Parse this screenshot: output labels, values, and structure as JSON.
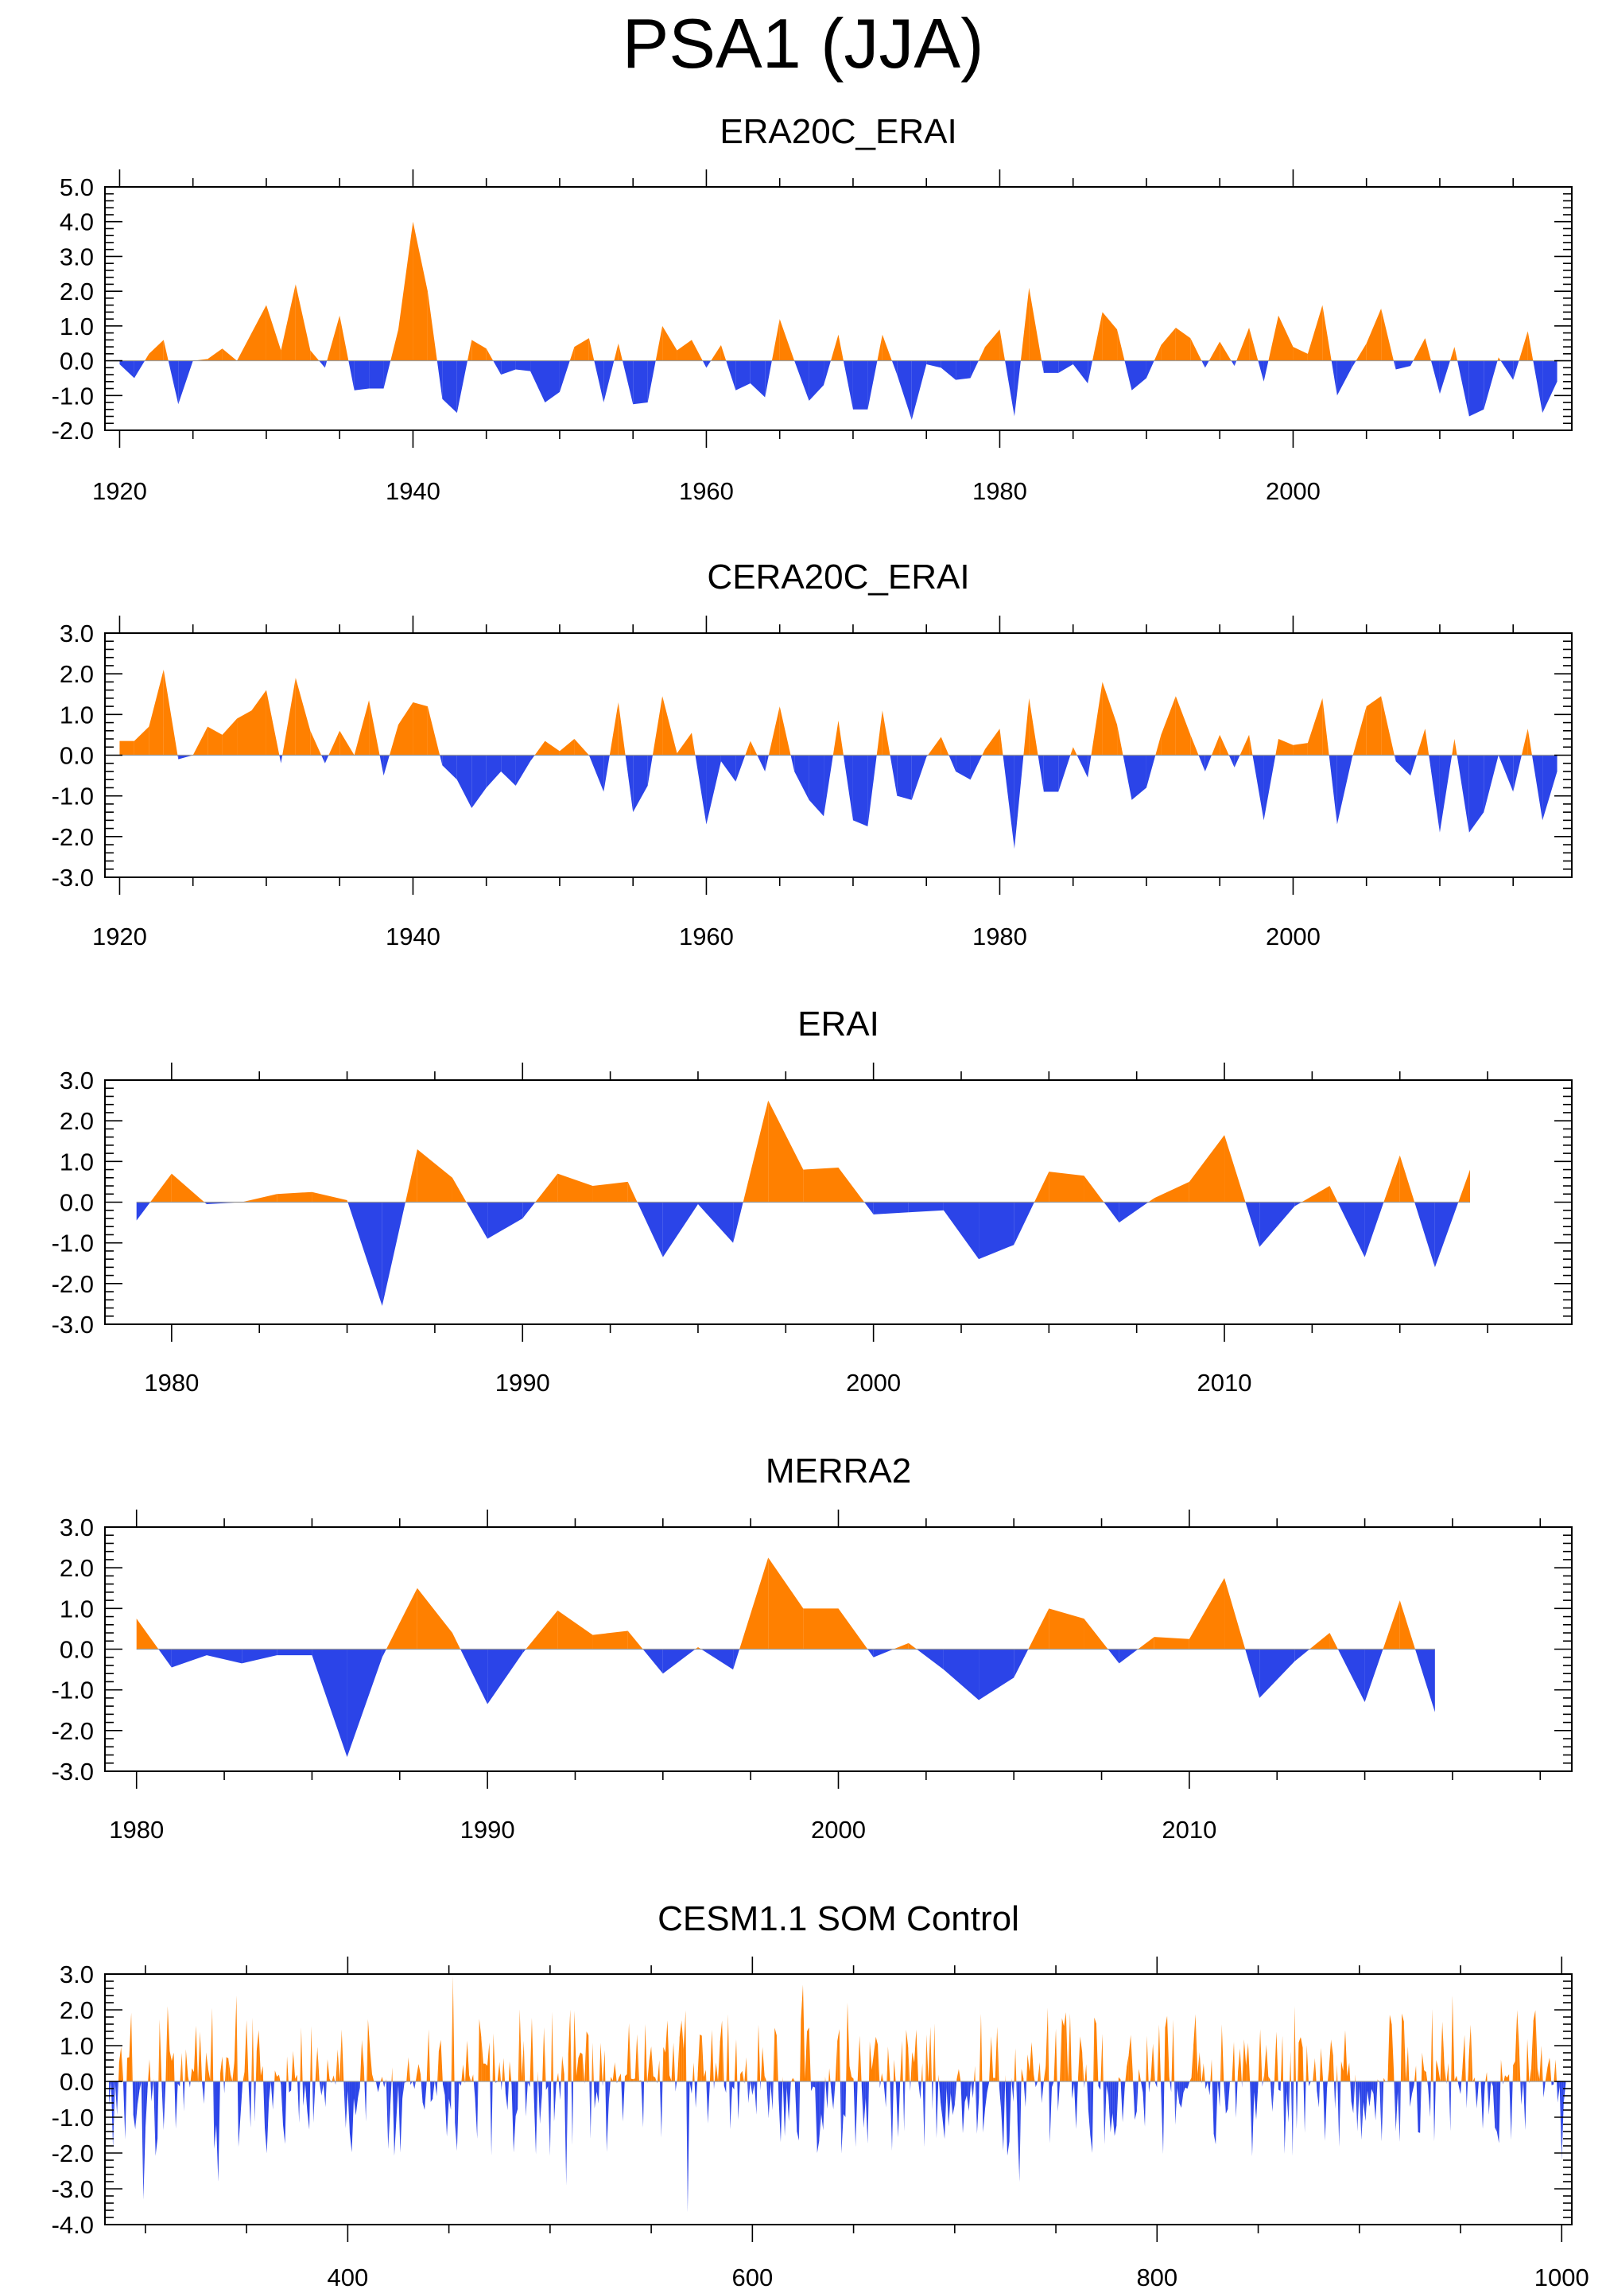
{
  "figure": {
    "title": "PSA1 (JJA)",
    "colors": {
      "positive": "#ff8000",
      "negative": "#2b44e8",
      "axis": "#000000"
    }
  },
  "chart_data": [
    {
      "type": "area",
      "title": "ERA20C_ERAI",
      "xlim": [
        1919,
        2019
      ],
      "ylim": [
        -2.0,
        5.0
      ],
      "xticks": [
        1920,
        1940,
        1960,
        1980,
        2000
      ],
      "xtick_labels": [
        "1920",
        "1940",
        "1960",
        "1980",
        "2000"
      ],
      "yticks": [
        -2,
        -1,
        0,
        1,
        2,
        3,
        4,
        5
      ],
      "ytick_labels": [
        "-2.0",
        "-1.0",
        "0.0",
        "1.0",
        "2.0",
        "3.0",
        "4.0",
        "5.0"
      ],
      "x_start": 1920,
      "values": [
        -0.1,
        -0.5,
        0.2,
        0.6,
        -1.25,
        0.0,
        0.05,
        0.35,
        0.0,
        0.8,
        1.6,
        0.3,
        2.2,
        0.3,
        -0.2,
        1.3,
        -0.85,
        -0.8,
        -0.8,
        0.9,
        4.0,
        2.0,
        -1.1,
        -1.5,
        0.6,
        0.35,
        -0.4,
        -0.25,
        -0.3,
        -1.2,
        -0.9,
        0.4,
        0.65,
        -1.2,
        0.5,
        -1.25,
        -1.2,
        1.0,
        0.3,
        0.6,
        -0.2,
        0.45,
        -0.85,
        -0.65,
        -1.05,
        1.2,
        0.0,
        -1.15,
        -0.7,
        0.75,
        -1.4,
        -1.4,
        0.75,
        -0.4,
        -1.7,
        -0.1,
        -0.2,
        -0.55,
        -0.5,
        0.4,
        0.9,
        -1.6,
        2.1,
        -0.35,
        -0.35,
        -0.1,
        -0.65,
        1.4,
        0.9,
        -0.85,
        -0.5,
        0.45,
        0.95,
        0.65,
        -0.2,
        0.55,
        -0.15,
        0.95,
        -0.6,
        1.3,
        0.4,
        0.2,
        1.6,
        -1.0,
        -0.2,
        0.5,
        1.5,
        -0.25,
        -0.15,
        0.65,
        -0.95,
        0.4,
        -1.6,
        -1.4,
        0.1,
        -0.55,
        0.85,
        -1.5,
        -0.6
      ]
    },
    {
      "type": "area",
      "title": "CERA20C_ERAI",
      "xlim": [
        1919,
        2019
      ],
      "ylim": [
        -3.0,
        3.0
      ],
      "xticks": [
        1920,
        1940,
        1960,
        1980,
        2000
      ],
      "xtick_labels": [
        "1920",
        "1940",
        "1960",
        "1980",
        "2000"
      ],
      "yticks": [
        -3,
        -2,
        -1,
        0,
        1,
        2,
        3
      ],
      "ytick_labels": [
        "-3.0",
        "-2.0",
        "-1.0",
        "0.0",
        "1.0",
        "2.0",
        "3.0"
      ],
      "x_start": 1920,
      "values": [
        0.35,
        0.35,
        0.7,
        2.1,
        -0.1,
        0.0,
        0.7,
        0.5,
        0.9,
        1.1,
        1.6,
        -0.2,
        1.9,
        0.6,
        -0.2,
        0.6,
        0.0,
        1.35,
        -0.5,
        0.75,
        1.3,
        1.2,
        -0.25,
        -0.6,
        -1.3,
        -0.8,
        -0.4,
        -0.75,
        -0.15,
        0.35,
        0.1,
        0.4,
        0.0,
        -0.9,
        1.3,
        -1.4,
        -0.75,
        1.45,
        0.05,
        0.55,
        -1.7,
        -0.15,
        -0.65,
        0.35,
        -0.4,
        1.2,
        -0.4,
        -1.1,
        -1.5,
        0.85,
        -1.6,
        -1.75,
        1.1,
        -1.0,
        -1.1,
        -0.05,
        0.45,
        -0.4,
        -0.6,
        0.15,
        0.65,
        -2.3,
        1.4,
        -0.9,
        -0.9,
        0.2,
        -0.55,
        1.8,
        0.75,
        -1.1,
        -0.8,
        0.5,
        1.45,
        0.5,
        -0.4,
        0.5,
        -0.3,
        0.5,
        -1.6,
        0.4,
        0.25,
        0.3,
        1.4,
        -1.7,
        -0.1,
        1.2,
        1.45,
        -0.15,
        -0.5,
        0.65,
        -1.9,
        0.4,
        -1.9,
        -1.4,
        0.0,
        -0.9,
        0.65,
        -1.6,
        -0.4
      ]
    },
    {
      "type": "area",
      "title": "ERAI",
      "xlim": [
        1978.1,
        2019.9
      ],
      "ylim": [
        -3.0,
        3.0
      ],
      "xticks": [
        1980,
        1990,
        2000,
        2010
      ],
      "xtick_labels": [
        "1980",
        "1990",
        "2000",
        "2010"
      ],
      "yticks": [
        -3,
        -2,
        -1,
        0,
        1,
        2,
        3
      ],
      "ytick_labels": [
        "-3.0",
        "-2.0",
        "-1.0",
        "0.0",
        "1.0",
        "2.0",
        "3.0"
      ],
      "x_start": 1979,
      "values": [
        -0.45,
        0.7,
        -0.05,
        0.0,
        0.2,
        0.25,
        0.05,
        -2.55,
        1.3,
        0.6,
        -0.9,
        -0.4,
        0.7,
        0.4,
        0.5,
        -1.35,
        -0.05,
        -1.0,
        2.5,
        0.8,
        0.85,
        -0.3,
        -0.25,
        -0.2,
        -1.4,
        -1.05,
        0.75,
        0.65,
        -0.5,
        0.1,
        0.5,
        1.65,
        -1.1,
        -0.1,
        0.4,
        -1.35,
        1.15,
        -1.6,
        0.8
      ]
    },
    {
      "type": "area",
      "title": "MERRA2",
      "xlim": [
        1979.1,
        2020.9
      ],
      "ylim": [
        -3.0,
        3.0
      ],
      "xticks": [
        1980,
        1990,
        2000,
        2010
      ],
      "xtick_labels": [
        "1980",
        "1990",
        "2000",
        "2010"
      ],
      "yticks": [
        -3,
        -2,
        -1,
        0,
        1,
        2,
        3
      ],
      "ytick_labels": [
        "-3.0",
        "-2.0",
        "-1.0",
        "0.0",
        "1.0",
        "2.0",
        "3.0"
      ],
      "x_start": 1980,
      "values": [
        0.75,
        -0.45,
        -0.15,
        -0.35,
        -0.15,
        -0.15,
        -2.65,
        -0.2,
        1.5,
        0.4,
        -1.35,
        -0.1,
        0.95,
        0.35,
        0.45,
        -0.6,
        0.05,
        -0.5,
        2.25,
        1.0,
        1.0,
        -0.2,
        0.15,
        -0.5,
        -1.25,
        -0.7,
        1.0,
        0.75,
        -0.35,
        0.3,
        0.25,
        1.75,
        -1.2,
        -0.3,
        0.4,
        -1.3,
        1.2,
        -1.55
      ]
    },
    {
      "type": "area",
      "title": "CESM1.1 SOM Control",
      "xlim": [
        280,
        1005
      ],
      "ylim": [
        -4.0,
        3.0
      ],
      "xticks": [
        400,
        600,
        800,
        1000
      ],
      "xtick_labels": [
        "400",
        "600",
        "800",
        "1000"
      ],
      "yticks": [
        -4,
        -3,
        -2,
        -1,
        0,
        1,
        2,
        3
      ],
      "ytick_labels": [
        "-4.0",
        "-3.0",
        "-2.0",
        "-1.0",
        "0.0",
        "1.0",
        "2.0",
        "3.0"
      ],
      "x_start": 282,
      "x_end": 1002,
      "seed": 20200,
      "extremes": [
        [
          299,
          -3.3
        ],
        [
          311,
          2.1
        ],
        [
          336,
          -2.8
        ],
        [
          345,
          2.4
        ],
        [
          452,
          2.95
        ],
        [
          508,
          -2.9
        ],
        [
          568,
          -3.65
        ],
        [
          625,
          2.7
        ],
        [
          647,
          2.2
        ],
        [
          732,
          -2.8
        ],
        [
          868,
          2.1
        ],
        [
          946,
          2.4
        ],
        [
          1000,
          -2.2
        ]
      ]
    }
  ]
}
